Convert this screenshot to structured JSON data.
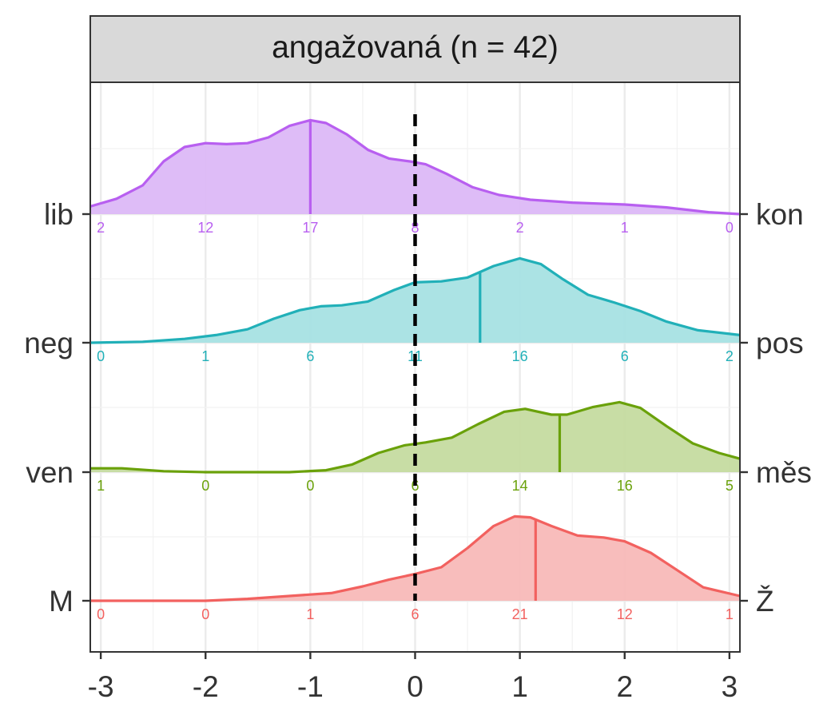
{
  "chart_data": {
    "type": "ridgeline",
    "title": "angažovaná (n = 42)",
    "xlabel": "",
    "ylabel": "",
    "xlim": [
      -3.1,
      3.1
    ],
    "x_ticks": [
      -3,
      -2,
      -1,
      0,
      1,
      2,
      3
    ],
    "x_tick_labels": [
      "-3",
      "-2",
      "-1",
      "0",
      "1",
      "2",
      "3"
    ],
    "reference_line_x": 0,
    "count_positions": [
      -3,
      -2,
      -1,
      0,
      1,
      2,
      3
    ],
    "series": [
      {
        "left_label": "lib",
        "right_label": "kon",
        "color": "#b85ff0",
        "fill": "#dcb8f7",
        "mean": -1.0,
        "counts": [
          "2",
          "12",
          "17",
          "8",
          "2",
          "1",
          "0"
        ],
        "density": [
          [
            -3.1,
            0.08
          ],
          [
            -2.85,
            0.16
          ],
          [
            -2.6,
            0.3
          ],
          [
            -2.4,
            0.55
          ],
          [
            -2.2,
            0.7
          ],
          [
            -2.0,
            0.74
          ],
          [
            -1.8,
            0.73
          ],
          [
            -1.6,
            0.74
          ],
          [
            -1.4,
            0.8
          ],
          [
            -1.2,
            0.92
          ],
          [
            -1.0,
            0.98
          ],
          [
            -0.85,
            0.95
          ],
          [
            -0.65,
            0.83
          ],
          [
            -0.45,
            0.67
          ],
          [
            -0.25,
            0.58
          ],
          [
            -0.05,
            0.55
          ],
          [
            0.1,
            0.52
          ],
          [
            0.3,
            0.42
          ],
          [
            0.55,
            0.28
          ],
          [
            0.8,
            0.2
          ],
          [
            1.1,
            0.15
          ],
          [
            1.5,
            0.12
          ],
          [
            2.0,
            0.1
          ],
          [
            2.4,
            0.07
          ],
          [
            2.8,
            0.02
          ],
          [
            3.1,
            0.0
          ]
        ]
      },
      {
        "left_label": "neg",
        "right_label": "pos",
        "color": "#21b0b8",
        "fill": "#a6e1e3",
        "mean": 0.62,
        "counts": [
          "0",
          "1",
          "6",
          "11",
          "16",
          "6",
          "2"
        ],
        "density": [
          [
            -3.1,
            0.0
          ],
          [
            -2.6,
            0.01
          ],
          [
            -2.2,
            0.04
          ],
          [
            -1.9,
            0.08
          ],
          [
            -1.6,
            0.14
          ],
          [
            -1.35,
            0.25
          ],
          [
            -1.1,
            0.34
          ],
          [
            -0.9,
            0.38
          ],
          [
            -0.7,
            0.39
          ],
          [
            -0.45,
            0.43
          ],
          [
            -0.2,
            0.55
          ],
          [
            0.0,
            0.63
          ],
          [
            0.25,
            0.64
          ],
          [
            0.5,
            0.68
          ],
          [
            0.75,
            0.8
          ],
          [
            1.0,
            0.88
          ],
          [
            1.2,
            0.82
          ],
          [
            1.4,
            0.67
          ],
          [
            1.65,
            0.5
          ],
          [
            1.9,
            0.42
          ],
          [
            2.15,
            0.33
          ],
          [
            2.4,
            0.22
          ],
          [
            2.7,
            0.13
          ],
          [
            3.1,
            0.08
          ]
        ]
      },
      {
        "left_label": "ven",
        "right_label": "měs",
        "color": "#6aa10a",
        "fill": "#c5dba0",
        "mean": 1.38,
        "counts": [
          "1",
          "0",
          "0",
          "6",
          "14",
          "16",
          "5"
        ],
        "density": [
          [
            -3.1,
            0.04
          ],
          [
            -2.8,
            0.04
          ],
          [
            -2.4,
            0.01
          ],
          [
            -2.0,
            0.0
          ],
          [
            -1.6,
            0.0
          ],
          [
            -1.2,
            0.0
          ],
          [
            -0.85,
            0.02
          ],
          [
            -0.6,
            0.08
          ],
          [
            -0.35,
            0.2
          ],
          [
            -0.1,
            0.28
          ],
          [
            0.1,
            0.31
          ],
          [
            0.35,
            0.36
          ],
          [
            0.6,
            0.5
          ],
          [
            0.85,
            0.63
          ],
          [
            1.05,
            0.66
          ],
          [
            1.3,
            0.6
          ],
          [
            1.45,
            0.6
          ],
          [
            1.7,
            0.68
          ],
          [
            1.95,
            0.73
          ],
          [
            2.15,
            0.67
          ],
          [
            2.4,
            0.48
          ],
          [
            2.65,
            0.3
          ],
          [
            2.9,
            0.2
          ],
          [
            3.1,
            0.14
          ]
        ]
      },
      {
        "left_label": "M",
        "right_label": "Ž",
        "color": "#f2615f",
        "fill": "#f8b9b8",
        "mean": 1.15,
        "counts": [
          "0",
          "0",
          "1",
          "6",
          "21",
          "12",
          "1"
        ],
        "density": [
          [
            -3.1,
            0.0
          ],
          [
            -2.4,
            0.0
          ],
          [
            -2.0,
            0.0
          ],
          [
            -1.6,
            0.02
          ],
          [
            -1.2,
            0.05
          ],
          [
            -0.8,
            0.08
          ],
          [
            -0.5,
            0.15
          ],
          [
            -0.25,
            0.22
          ],
          [
            0.0,
            0.28
          ],
          [
            0.25,
            0.35
          ],
          [
            0.5,
            0.55
          ],
          [
            0.75,
            0.78
          ],
          [
            0.95,
            0.88
          ],
          [
            1.1,
            0.87
          ],
          [
            1.3,
            0.78
          ],
          [
            1.55,
            0.68
          ],
          [
            1.8,
            0.66
          ],
          [
            2.0,
            0.62
          ],
          [
            2.25,
            0.5
          ],
          [
            2.5,
            0.32
          ],
          [
            2.75,
            0.14
          ],
          [
            3.1,
            0.05
          ]
        ]
      }
    ]
  }
}
